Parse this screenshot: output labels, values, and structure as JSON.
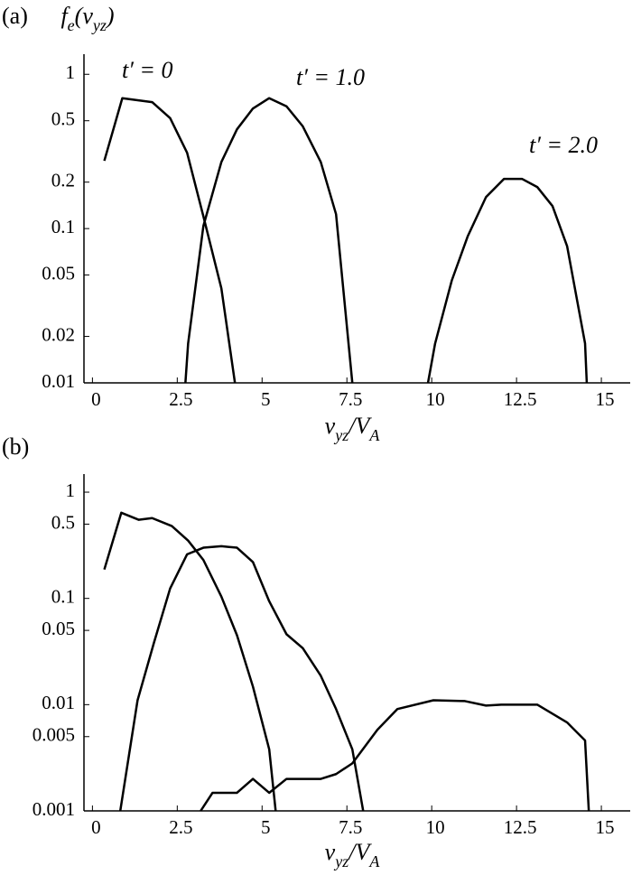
{
  "chart_data": [
    {
      "type": "line",
      "panel_label": "(a)",
      "ylabel_parts": [
        {
          "text": "f"
        },
        {
          "text": "e",
          "sub": true
        },
        {
          "text": "(v"
        },
        {
          "text": "yz",
          "sub": true
        },
        {
          "text": ")"
        }
      ],
      "xlabel_parts": [
        {
          "text": "v"
        },
        {
          "text": "yz",
          "sub": true
        },
        {
          "text": "/V"
        },
        {
          "text": "A",
          "sub": true
        }
      ],
      "log_y": true,
      "grid": false,
      "xlim": [
        -0.25,
        15.85
      ],
      "xticks": [
        0,
        2.5,
        5,
        7.5,
        10,
        12.5,
        15
      ],
      "ylim": [
        0.01,
        1.35
      ],
      "yticks": [
        0.01,
        0.02,
        0.05,
        0.1,
        0.2,
        0.5,
        1
      ],
      "annotations": [
        "t′ = 0",
        "t′ = 1.0",
        "t′ = 2.0"
      ],
      "series": [
        {
          "color": "#000000",
          "x": [
            0.35,
            0.88,
            1.76,
            2.29,
            2.79,
            3.27,
            3.8,
            4.2
          ],
          "values": [
            0.275,
            0.7,
            0.66,
            0.52,
            0.31,
            0.12,
            0.041,
            0.01
          ]
        },
        {
          "color": "#000000",
          "x": [
            2.74,
            2.82,
            3.27,
            3.8,
            4.26,
            4.73,
            5.21,
            5.72,
            6.2,
            6.73,
            7.18,
            7.66
          ],
          "values": [
            0.01,
            0.018,
            0.104,
            0.27,
            0.44,
            0.6,
            0.7,
            0.62,
            0.46,
            0.27,
            0.124,
            0.01
          ]
        },
        {
          "color": "#000000",
          "x": [
            9.89,
            10.1,
            10.59,
            11.06,
            11.6,
            12.13,
            12.66,
            13.11,
            13.56,
            13.99,
            14.52,
            14.57
          ],
          "values": [
            0.01,
            0.018,
            0.046,
            0.089,
            0.16,
            0.21,
            0.21,
            0.186,
            0.14,
            0.077,
            0.018,
            0.01
          ]
        }
      ]
    },
    {
      "type": "line",
      "panel_label": "(b)",
      "xlabel_parts": [
        {
          "text": "v"
        },
        {
          "text": "yz",
          "sub": true
        },
        {
          "text": "/V"
        },
        {
          "text": "A",
          "sub": true
        }
      ],
      "log_y": true,
      "grid": false,
      "xlim": [
        -0.25,
        15.85
      ],
      "xticks": [
        0,
        2.5,
        5,
        7.5,
        10,
        12.5,
        15
      ],
      "ylim": [
        0.001,
        1.48
      ],
      "yticks": [
        0.001,
        0.005,
        0.01,
        0.05,
        0.1,
        0.5,
        1
      ],
      "series": [
        {
          "color": "#000000",
          "x": [
            0.35,
            0.85,
            1.36,
            1.76,
            2.34,
            2.82,
            3.27,
            3.8,
            4.26,
            4.73,
            5.21,
            5.4
          ],
          "values": [
            0.187,
            0.64,
            0.55,
            0.57,
            0.48,
            0.35,
            0.23,
            0.104,
            0.045,
            0.0148,
            0.0038,
            0.001
          ]
        },
        {
          "color": "#000000",
          "x": [
            0.82,
            1.33,
            1.81,
            2.29,
            2.79,
            3.27,
            3.8,
            4.26,
            4.73,
            5.21,
            5.72,
            6.2,
            6.73,
            7.18,
            7.66,
            7.98
          ],
          "values": [
            0.001,
            0.011,
            0.038,
            0.124,
            0.26,
            0.3,
            0.31,
            0.3,
            0.22,
            0.094,
            0.046,
            0.034,
            0.0187,
            0.0091,
            0.0038,
            0.001
          ]
        },
        {
          "color": "#000000",
          "x": [
            3.19,
            3.54,
            4.26,
            4.73,
            5.21,
            5.72,
            6.73,
            7.18,
            7.66,
            8.4,
            8.99,
            10.05,
            10.98,
            11.6,
            12.05,
            13.11,
            13.99,
            14.52,
            14.63
          ],
          "values": [
            0.001,
            0.00148,
            0.00148,
            0.002,
            0.00148,
            0.002,
            0.002,
            0.00222,
            0.0028,
            0.0058,
            0.0091,
            0.011,
            0.0108,
            0.0098,
            0.01,
            0.01,
            0.0068,
            0.0046,
            0.001
          ]
        }
      ]
    }
  ]
}
